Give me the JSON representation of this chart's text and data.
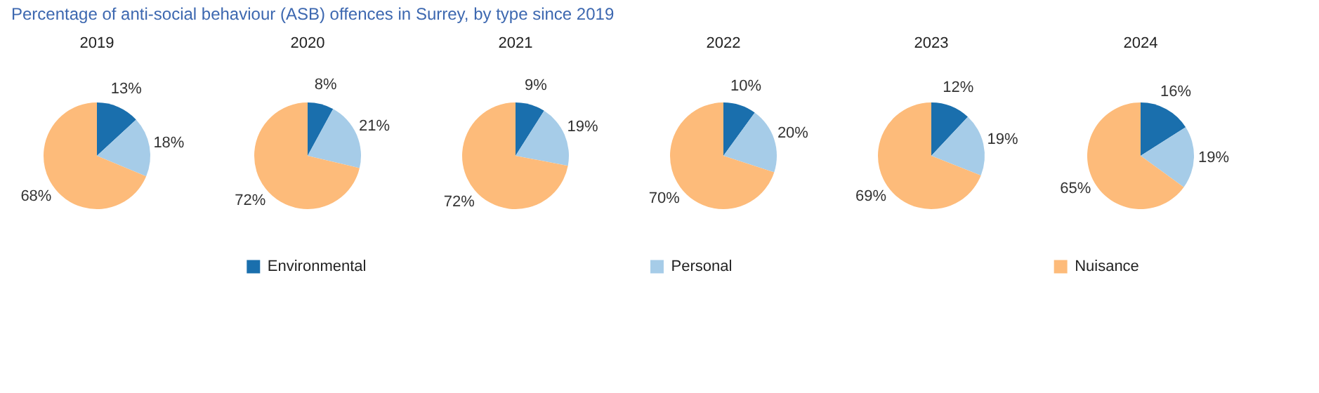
{
  "chart_data": {
    "type": "pie",
    "title": "Percentage of anti-social behaviour (ASB) offences in Surrey, by type since 2019",
    "legend": "bottom",
    "categories": [
      "Environmental",
      "Personal",
      "Nuisance"
    ],
    "colors": [
      "#1a6fad",
      "#a6cce8",
      "#fdbb7a"
    ],
    "series": [
      {
        "name": "2019",
        "values": [
          13,
          18,
          68
        ],
        "value_labels": [
          "13%",
          "18%",
          "68%"
        ]
      },
      {
        "name": "2020",
        "values": [
          8,
          21,
          72
        ],
        "value_labels": [
          "8%",
          "21%",
          "72%"
        ]
      },
      {
        "name": "2021",
        "values": [
          9,
          19,
          72
        ],
        "value_labels": [
          "9%",
          "19%",
          "72%"
        ]
      },
      {
        "name": "2022",
        "values": [
          10,
          20,
          70
        ],
        "value_labels": [
          "10%",
          "20%",
          "70%"
        ]
      },
      {
        "name": "2023",
        "values": [
          12,
          19,
          69
        ],
        "value_labels": [
          "12%",
          "19%",
          "69%"
        ]
      },
      {
        "name": "2024",
        "values": [
          16,
          19,
          65
        ],
        "value_labels": [
          "16%",
          "19%",
          "65%"
        ]
      }
    ]
  }
}
